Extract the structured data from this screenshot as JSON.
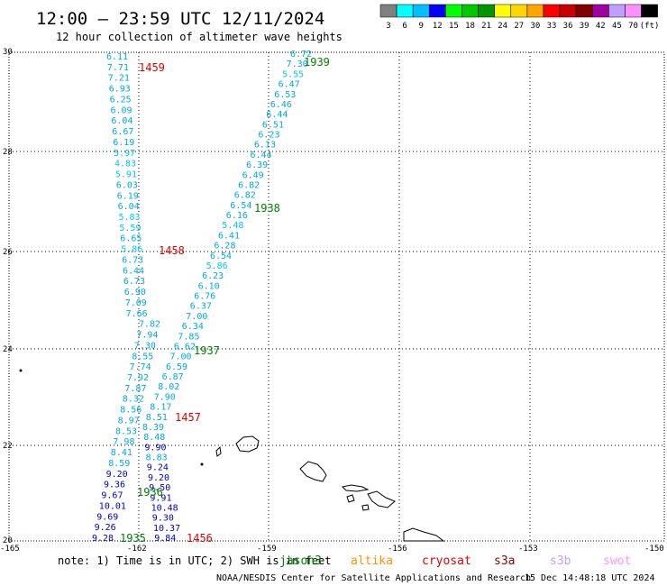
{
  "header": {
    "title": "12:00 – 23:59 UTC 12/11/2024",
    "subtitle": "12 hour collection of altimeter wave heights"
  },
  "legend": {
    "colors": [
      "#808080",
      "#00ffff",
      "#00bfff",
      "#0000ff",
      "#00ff00",
      "#00c800",
      "#009600",
      "#ffff00",
      "#ffd700",
      "#ffa500",
      "#ff0000",
      "#c80000",
      "#800000",
      "#a000a0",
      "#c0a0ff",
      "#ff90ff",
      "#000000"
    ],
    "labels": [
      "3",
      "6",
      "9",
      "12",
      "15",
      "18",
      "21",
      "24",
      "27",
      "30",
      "33",
      "36",
      "39",
      "42",
      "45",
      "70",
      "(ft)"
    ]
  },
  "axes": {
    "lat_ticks": [
      "30",
      "28",
      "26",
      "24",
      "22",
      "20"
    ],
    "lon_ticks": [
      "-165",
      "-162",
      "-159",
      "-156",
      "-153",
      "-150"
    ]
  },
  "series_colors": {
    "c_cyan": "#00a8e0",
    "c_light": "#00c8f0",
    "c_blue": "#0000c0",
    "c_time": "#008000",
    "c_time_red": "#e00000"
  },
  "track_left": {
    "values": [
      "6.11",
      "7.71",
      "7.21",
      "6.93",
      "6.25",
      "6.09",
      "6.04",
      "6.67",
      "6.19",
      "5.97",
      "4.83",
      "5.91",
      "6.03",
      "6.19",
      "6.04",
      "5.83",
      "5.59",
      "6.65",
      "5.86",
      "6.73",
      "6.44",
      "6.73",
      "6.90",
      "7.09",
      "7.66",
      "7.82",
      "7.94",
      "7.30",
      "8.55",
      "7.74",
      "7.92",
      "7.87",
      "8.32",
      "8.56",
      "8.97",
      "8.53",
      "7.98",
      "8.41",
      "8.59",
      "9.20",
      "9.36",
      "9.67",
      "10.01",
      "9.69",
      "9.26",
      "9.28"
    ]
  },
  "track_right": {
    "values": [
      "6.72",
      "7.30",
      "5.55",
      "6.47",
      "6.53",
      "6.46",
      "6.44",
      "6.51",
      "6.23",
      "6.13",
      "6.44",
      "6.39",
      "6.49",
      "6.82",
      "6.82",
      "6.54",
      "6.16",
      "5.48",
      "6.41",
      "6.28",
      "6.54",
      "5.86",
      "6.23",
      "6.10",
      "6.76",
      "6.37",
      "7.00",
      "6.34",
      "7.85",
      "6.62",
      "7.00",
      "6.59",
      "6.87",
      "8.02",
      "7.90",
      "8.17",
      "8.51",
      "8.39",
      "8.48",
      "9.90",
      "8.83",
      "9.24",
      "9.20",
      "9.50",
      "9.91",
      "10.48",
      "9.30",
      "10.37",
      "9.84"
    ]
  },
  "times": [
    {
      "label": "1459",
      "kind": "red"
    },
    {
      "label": "1939",
      "kind": "green"
    },
    {
      "label": "1938",
      "kind": "green"
    },
    {
      "label": "1458",
      "kind": "red"
    },
    {
      "label": "1937",
      "kind": "green"
    },
    {
      "label": "1457",
      "kind": "red"
    },
    {
      "label": "1936",
      "kind": "green"
    },
    {
      "label": "1935",
      "kind": "green"
    },
    {
      "label": "1456",
      "kind": "red"
    }
  ],
  "footer": {
    "note": "note: 1) Time is in UTC; 2) SWH is in feet",
    "satellites": [
      {
        "name": "jason3",
        "color": "#008000"
      },
      {
        "name": "altika",
        "color": "#ff9000"
      },
      {
        "name": "cryosat",
        "color": "#e00000"
      },
      {
        "name": "s3a",
        "color": "#900000"
      },
      {
        "name": "s3b",
        "color": "#c0a0ff"
      },
      {
        "name": "swot",
        "color": "#ff90ff"
      }
    ],
    "credit": "NOAA/NESDIS Center for Satellite Applications and Research",
    "timestamp": "15 Dec 14:48:18 UTC 2024"
  }
}
